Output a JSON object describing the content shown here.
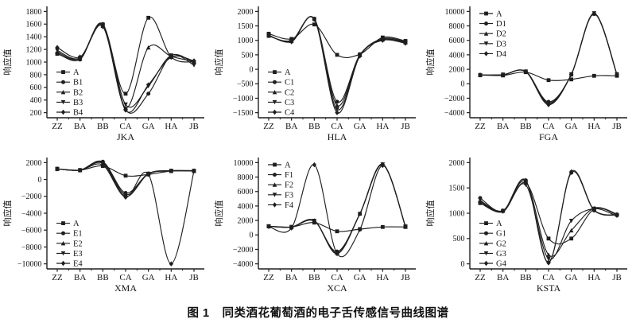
{
  "figure": {
    "caption_label": "图 1",
    "caption_text": "同类酒花葡萄酒的电子舌传感信号曲线图谱"
  },
  "colors": {
    "line": "#1f1f1f",
    "text": "#141414",
    "background": "#ffffff"
  },
  "chart_data": [
    {
      "type": "line",
      "xlabel": "JKA",
      "ylabel": "响应值",
      "categories": [
        "ZZ",
        "BA",
        "BB",
        "CA",
        "GA",
        "HA",
        "JB"
      ],
      "yticks": [
        200,
        400,
        600,
        800,
        1000,
        1200,
        1400,
        1600,
        1800
      ],
      "ylim": [
        200,
        1800
      ],
      "grid": false,
      "legend_position": "bottom-left",
      "series": [
        {
          "name": "A",
          "marker": "square",
          "values": [
            1130,
            1060,
            1580,
            500,
            1700,
            1080,
            1000
          ]
        },
        {
          "name": "B1",
          "marker": "circle",
          "values": [
            1140,
            1040,
            1600,
            250,
            500,
            1100,
            980
          ]
        },
        {
          "name": "B2",
          "marker": "triangle-up",
          "values": [
            1160,
            1055,
            1570,
            280,
            1230,
            1090,
            1010
          ]
        },
        {
          "name": "B3",
          "marker": "triangle-down",
          "values": [
            1185,
            1065,
            1590,
            330,
            620,
            1105,
            950
          ]
        },
        {
          "name": "B4",
          "marker": "diamond",
          "values": [
            1230,
            1080,
            1560,
            240,
            640,
            1075,
            1020
          ]
        }
      ]
    },
    {
      "type": "line",
      "xlabel": "HLA",
      "ylabel": "响应值",
      "categories": [
        "ZZ",
        "BA",
        "BB",
        "CA",
        "GA",
        "HA",
        "JB"
      ],
      "yticks": [
        -1500,
        -1000,
        -500,
        0,
        500,
        1000,
        1500,
        2000
      ],
      "ylim": [
        -1500,
        2000
      ],
      "grid": false,
      "legend_position": "bottom-left",
      "series": [
        {
          "name": "A",
          "marker": "square",
          "values": [
            1230,
            1050,
            1550,
            500,
            520,
            1100,
            980
          ]
        },
        {
          "name": "C1",
          "marker": "circle",
          "values": [
            1150,
            1000,
            1750,
            -1120,
            500,
            1060,
            950
          ]
        },
        {
          "name": "C2",
          "marker": "triangle-up",
          "values": [
            1160,
            980,
            1740,
            -1250,
            490,
            1030,
            930
          ]
        },
        {
          "name": "C3",
          "marker": "triangle-down",
          "values": [
            1170,
            960,
            1735,
            -1390,
            475,
            1015,
            915
          ]
        },
        {
          "name": "C4",
          "marker": "diamond",
          "values": [
            1180,
            950,
            1725,
            -1500,
            460,
            1000,
            900
          ]
        }
      ]
    },
    {
      "type": "line",
      "xlabel": "FGA",
      "ylabel": "响应值",
      "categories": [
        "ZZ",
        "BA",
        "BB",
        "CA",
        "GA",
        "HA",
        "JB"
      ],
      "yticks": [
        -4000,
        -2000,
        0,
        2000,
        4000,
        6000,
        8000,
        10000
      ],
      "ylim": [
        -4000,
        10000
      ],
      "grid": false,
      "legend_position": "top-left",
      "series": [
        {
          "name": "A",
          "marker": "square",
          "values": [
            1200,
            1150,
            1600,
            500,
            600,
            1100,
            1100
          ]
        },
        {
          "name": "D1",
          "marker": "circle",
          "values": [
            1210,
            1250,
            1700,
            -2500,
            1300,
            9650,
            1280
          ]
        },
        {
          "name": "D2",
          "marker": "triangle-up",
          "values": [
            1200,
            1240,
            1680,
            -2650,
            1290,
            9700,
            1300
          ]
        },
        {
          "name": "D3",
          "marker": "triangle-down",
          "values": [
            1195,
            1260,
            1690,
            -2800,
            1310,
            9750,
            1290
          ]
        },
        {
          "name": "D4",
          "marker": "diamond",
          "values": [
            1205,
            1245,
            1670,
            -2900,
            1295,
            9700,
            1310
          ]
        }
      ]
    },
    {
      "type": "line",
      "xlabel": "XMA",
      "ylabel": "响应值",
      "categories": [
        "ZZ",
        "BA",
        "BB",
        "CA",
        "GA",
        "HA",
        "JB"
      ],
      "yticks": [
        -10000,
        -8000,
        -6000,
        -4000,
        -2000,
        0,
        2000
      ],
      "ylim": [
        -10000,
        2000
      ],
      "grid": false,
      "legend_position": "bottom-left",
      "series": [
        {
          "name": "A",
          "marker": "square",
          "values": [
            1250,
            1100,
            1600,
            450,
            600,
            1000,
            1000
          ]
        },
        {
          "name": "E1",
          "marker": "circle",
          "values": [
            1260,
            1110,
            2100,
            -1600,
            700,
            1050,
            1040
          ]
        },
        {
          "name": "E2",
          "marker": "triangle-up",
          "values": [
            1255,
            1105,
            2000,
            -1800,
            650,
            1000,
            1010
          ]
        },
        {
          "name": "E3",
          "marker": "triangle-down",
          "values": [
            1250,
            1100,
            1900,
            -2000,
            680,
            1020,
            1020
          ]
        },
        {
          "name": "E4",
          "marker": "diamond",
          "values": [
            1245,
            1095,
            1700,
            -2100,
            600,
            -10000,
            1000
          ]
        }
      ]
    },
    {
      "type": "line",
      "xlabel": "XCA",
      "ylabel": "响应值",
      "categories": [
        "ZZ",
        "BA",
        "BB",
        "CA",
        "GA",
        "HA",
        "JB"
      ],
      "yticks": [
        -4000,
        -2000,
        0,
        2000,
        4000,
        6000,
        8000,
        10000
      ],
      "ylim": [
        -4000,
        10000
      ],
      "grid": false,
      "legend_position": "top-left",
      "series": [
        {
          "name": "A",
          "marker": "square",
          "values": [
            1200,
            1100,
            1700,
            500,
            800,
            1100,
            1100
          ]
        },
        {
          "name": "F1",
          "marker": "circle",
          "values": [
            1190,
            1090,
            1900,
            -2300,
            2900,
            9700,
            1200
          ]
        },
        {
          "name": "F2",
          "marker": "triangle-up",
          "values": [
            1210,
            1100,
            2000,
            -2500,
            2950,
            9800,
            1150
          ]
        },
        {
          "name": "F3",
          "marker": "triangle-down",
          "values": [
            1200,
            1095,
            1950,
            -2600,
            2900,
            9750,
            1160
          ]
        },
        {
          "name": "F4",
          "marker": "diamond",
          "values": [
            1150,
            950,
            9700,
            -2600,
            750,
            9600,
            1180
          ]
        }
      ]
    },
    {
      "type": "line",
      "xlabel": "KSTA",
      "ylabel": "响应值",
      "categories": [
        "ZZ",
        "BA",
        "BB",
        "CA",
        "GA",
        "HA",
        "JB"
      ],
      "yticks": [
        0,
        500,
        1000,
        1500,
        2000
      ],
      "ylim": [
        0,
        2000
      ],
      "grid": false,
      "legend_position": "bottom-left",
      "series": [
        {
          "name": "A",
          "marker": "square",
          "values": [
            1200,
            1050,
            1600,
            500,
            500,
            1080,
            970
          ]
        },
        {
          "name": "G1",
          "marker": "circle",
          "values": [
            1300,
            1040,
            1650,
            30,
            1800,
            1055,
            960
          ]
        },
        {
          "name": "G2",
          "marker": "triangle-up",
          "values": [
            1250,
            1050,
            1620,
            180,
            660,
            1100,
            985
          ]
        },
        {
          "name": "G3",
          "marker": "triangle-down",
          "values": [
            1205,
            1030,
            1560,
            100,
            850,
            1090,
            945
          ]
        },
        {
          "name": "G4",
          "marker": "diamond",
          "values": [
            1230,
            1045,
            1640,
            20,
            1820,
            1065,
            965
          ]
        }
      ]
    }
  ]
}
